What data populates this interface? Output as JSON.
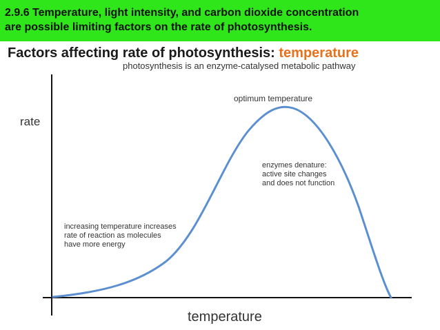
{
  "banner": {
    "line1": "2.9.6 Temperature, light intensity, and carbon dioxide concentration",
    "line2": "are possible limiting factors on the rate of photosynthesis."
  },
  "slide": {
    "title_main": "Factors affecting rate of photosynthesis: ",
    "title_accent": "temperature",
    "subtitle": "photosynthesis is an enzyme-catalysed metabolic pathway"
  },
  "graph": {
    "y_label": "rate",
    "x_label": "temperature",
    "curve_color": "#5b8fcf",
    "accent_color": "#e8711c",
    "banner_color": "#2ee619",
    "annotations": {
      "optimum": "optimum temperature",
      "denature": {
        "line1": "enzymes denature:",
        "line2": "active site changes",
        "line3": "and does not function"
      },
      "increase": {
        "line1": "increasing temperature increases",
        "line2": "rate of reaction as molecules",
        "line3": "have more energy"
      }
    }
  }
}
